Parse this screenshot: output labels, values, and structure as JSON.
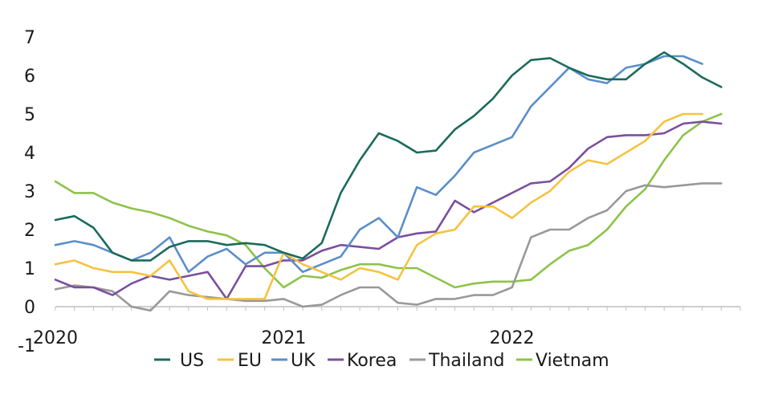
{
  "chart_data": {
    "type": "line",
    "title": "",
    "xlabel": "",
    "ylabel": "",
    "ylim": [
      -1,
      7
    ],
    "yticks": [
      -1,
      0,
      1,
      2,
      3,
      4,
      5,
      6,
      7
    ],
    "ytick_labels": [
      "-1",
      "0",
      "1",
      "2",
      "3",
      "4",
      "5",
      "6",
      "7"
    ],
    "xlim": [
      0,
      36
    ],
    "xticks": [
      0,
      12,
      24
    ],
    "xtick_labels": [
      "2020",
      "2021",
      "2022"
    ],
    "legend_position": "bottom",
    "grid": false,
    "series": [
      {
        "name": "US",
        "color": "#1a6b5b",
        "values": [
          2.25,
          2.35,
          2.05,
          1.4,
          1.2,
          1.2,
          1.55,
          1.7,
          1.7,
          1.6,
          1.65,
          1.6,
          1.4,
          1.25,
          1.65,
          2.95,
          3.8,
          4.5,
          4.3,
          4.0,
          4.05,
          4.6,
          4.95,
          5.4,
          6.0,
          6.4,
          6.45,
          6.2,
          6.0,
          5.9,
          5.9,
          6.3,
          6.6,
          6.3,
          5.95,
          5.7
        ]
      },
      {
        "name": "EU",
        "color": "#f5c342",
        "values": [
          1.1,
          1.2,
          1.0,
          0.9,
          0.9,
          0.8,
          1.2,
          0.4,
          0.2,
          0.2,
          0.2,
          0.2,
          1.4,
          1.1,
          0.9,
          0.7,
          1.0,
          0.9,
          0.7,
          1.6,
          1.9,
          2.0,
          2.6,
          2.6,
          2.3,
          2.7,
          3.0,
          3.5,
          3.8,
          3.7,
          4.0,
          4.3,
          4.8,
          5.0,
          5.0
        ]
      },
      {
        "name": "UK",
        "color": "#5b8ec9",
        "values": [
          1.6,
          1.7,
          1.6,
          1.4,
          1.2,
          1.4,
          1.8,
          0.9,
          1.3,
          1.5,
          1.1,
          1.4,
          1.4,
          0.9,
          1.1,
          1.3,
          2.0,
          2.3,
          1.8,
          3.1,
          2.9,
          3.4,
          4.0,
          4.2,
          4.4,
          5.2,
          5.7,
          6.2,
          5.9,
          5.8,
          6.2,
          6.3,
          6.5,
          6.5,
          6.3
        ]
      },
      {
        "name": "Korea",
        "color": "#7b4f9e",
        "values": [
          0.7,
          0.5,
          0.5,
          0.3,
          0.6,
          0.8,
          0.7,
          0.8,
          0.9,
          0.2,
          1.05,
          1.05,
          1.2,
          1.2,
          1.45,
          1.6,
          1.55,
          1.5,
          1.8,
          1.9,
          1.95,
          2.75,
          2.45,
          2.7,
          2.95,
          3.2,
          3.25,
          3.6,
          4.1,
          4.4,
          4.45,
          4.45,
          4.5,
          4.75,
          4.8,
          4.75
        ]
      },
      {
        "name": "Thailand",
        "color": "#999999",
        "values": [
          0.45,
          0.55,
          0.5,
          0.4,
          0.0,
          -0.1,
          0.4,
          0.3,
          0.25,
          0.2,
          0.15,
          0.15,
          0.2,
          0.0,
          0.05,
          0.3,
          0.5,
          0.5,
          0.1,
          0.05,
          0.2,
          0.2,
          0.3,
          0.3,
          0.5,
          1.8,
          2.0,
          2.0,
          2.3,
          2.5,
          3.0,
          3.15,
          3.1,
          3.15,
          3.2,
          3.2
        ]
      },
      {
        "name": "Vietnam",
        "color": "#8dc34a",
        "values": [
          3.25,
          2.95,
          2.95,
          2.7,
          2.55,
          2.45,
          2.3,
          2.1,
          1.95,
          1.85,
          1.6,
          1.0,
          0.5,
          0.8,
          0.75,
          0.95,
          1.1,
          1.1,
          1.0,
          1.0,
          0.75,
          0.5,
          0.6,
          0.65,
          0.65,
          0.7,
          1.1,
          1.45,
          1.6,
          2.0,
          2.6,
          3.05,
          3.8,
          4.45,
          4.8,
          5.0
        ]
      }
    ]
  }
}
